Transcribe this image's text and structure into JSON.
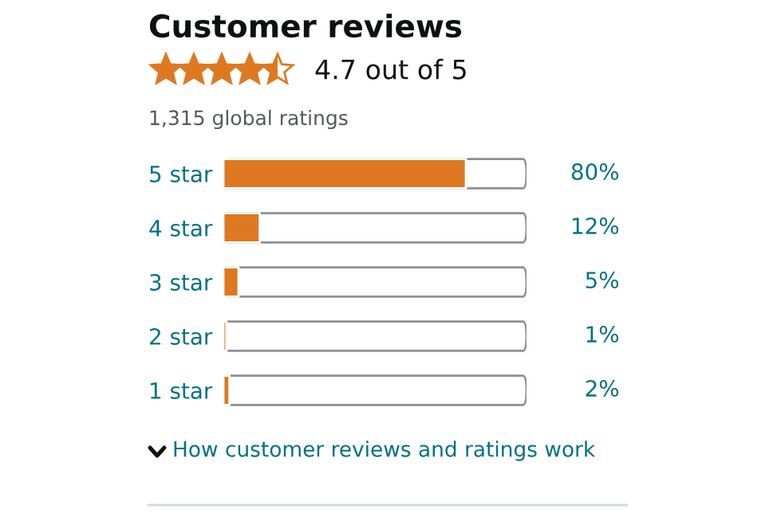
{
  "chart_data": {
    "type": "bar",
    "orientation": "horizontal",
    "title": "Customer reviews",
    "categories": [
      "5 star",
      "4 star",
      "3 star",
      "2 star",
      "1 star"
    ],
    "values": [
      80,
      12,
      5,
      1,
      2
    ],
    "value_labels": [
      "80%",
      "12%",
      "5%",
      "1%",
      "2%"
    ],
    "color": "#de7921",
    "xlim": [
      0,
      100
    ],
    "tick_labels": "y",
    "annotations": [
      "4.7 out of 5",
      "1,315 global ratings",
      "How customer reviews and ratings work"
    ]
  }
}
